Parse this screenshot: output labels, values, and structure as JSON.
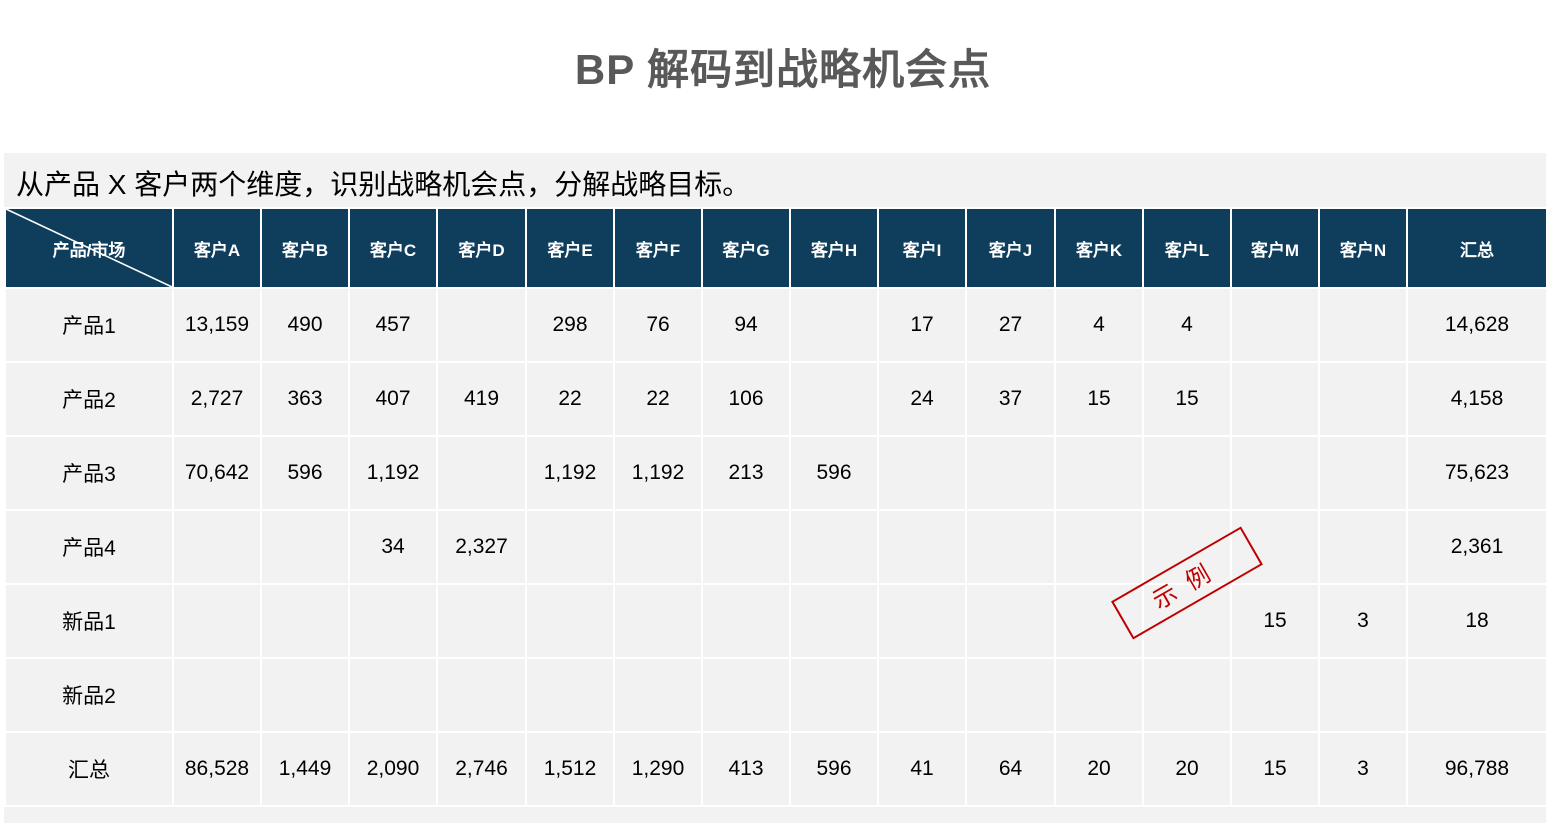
{
  "title": "BP 解码到战略机会点",
  "subtitle": "从产品 X 客户两个维度，识别战略机会点，分解战略目标。",
  "table": {
    "corner_label": "产品/市场",
    "columns": [
      "客户A",
      "客户B",
      "客户C",
      "客户D",
      "客户E",
      "客户F",
      "客户G",
      "客户H",
      "客户I",
      "客户J",
      "客户K",
      "客户L",
      "客户M",
      "客户N",
      "汇总"
    ],
    "rows": [
      {
        "label": "产品1",
        "cells": [
          "13,159",
          "490",
          "457",
          "",
          "298",
          "76",
          "94",
          "",
          "17",
          "27",
          "4",
          "4",
          "",
          "",
          "14,628"
        ]
      },
      {
        "label": "产品2",
        "cells": [
          "2,727",
          "363",
          "407",
          "419",
          "22",
          "22",
          "106",
          "",
          "24",
          "37",
          "15",
          "15",
          "",
          "",
          "4,158"
        ]
      },
      {
        "label": "产品3",
        "cells": [
          "70,642",
          "596",
          "1,192",
          "",
          "1,192",
          "1,192",
          "213",
          "596",
          "",
          "",
          "",
          "",
          "",
          "",
          "75,623"
        ]
      },
      {
        "label": "产品4",
        "cells": [
          "",
          "",
          "34",
          "2,327",
          "",
          "",
          "",
          "",
          "",
          "",
          "",
          "",
          "",
          "",
          "2,361"
        ]
      },
      {
        "label": "新品1",
        "cells": [
          "",
          "",
          "",
          "",
          "",
          "",
          "",
          "",
          "",
          "",
          "",
          "",
          "15",
          "3",
          "18"
        ]
      },
      {
        "label": "新品2",
        "cells": [
          "",
          "",
          "",
          "",
          "",
          "",
          "",
          "",
          "",
          "",
          "",
          "",
          "",
          "",
          ""
        ]
      },
      {
        "label": "汇总",
        "cells": [
          "86,528",
          "1,449",
          "2,090",
          "2,746",
          "1,512",
          "1,290",
          "413",
          "596",
          "41",
          "64",
          "20",
          "20",
          "15",
          "3",
          "96,788"
        ]
      }
    ]
  },
  "stamp": "示例",
  "colors": {
    "header_bg": "#0f3d5c",
    "cell_bg": "#f2f2f2",
    "title": "#595959",
    "stamp": "#c00000"
  }
}
